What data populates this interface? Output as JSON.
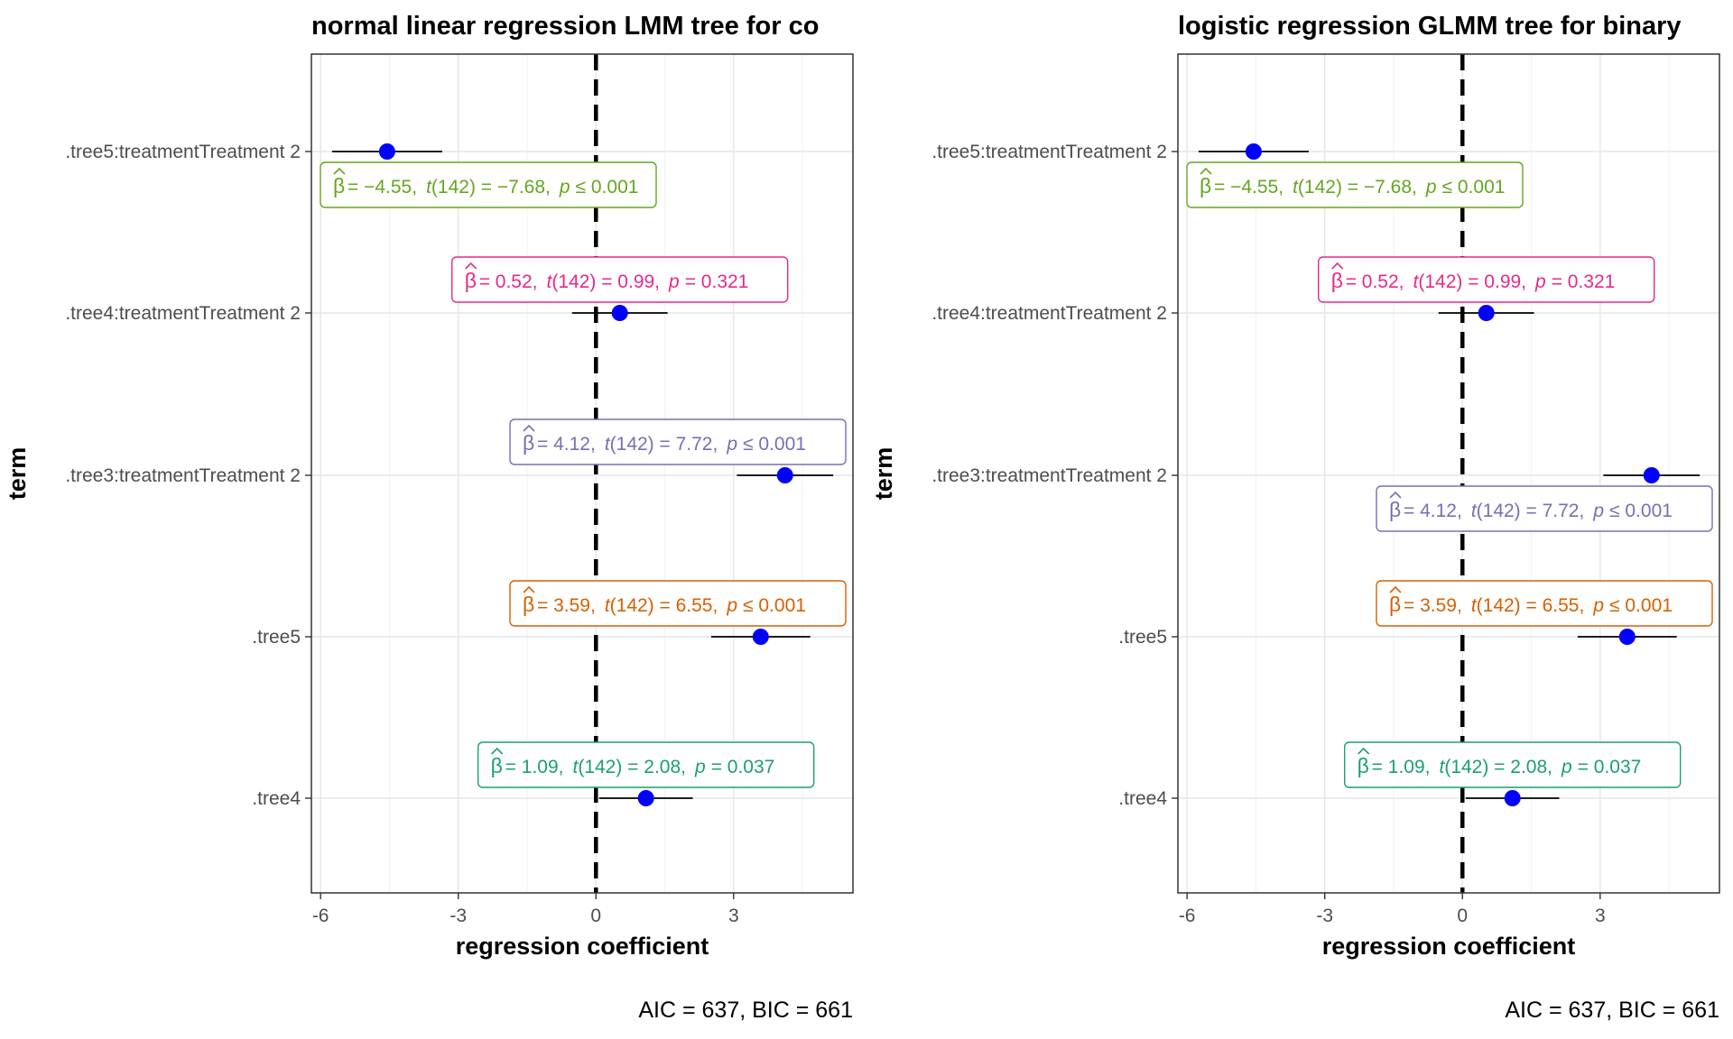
{
  "chart_data": [
    {
      "type": "forest",
      "title": "normal linear regression LMM tree for co",
      "xlabel": "regression coefficient",
      "ylabel": "term",
      "caption": "AIC = 637, BIC = 661",
      "xlim": [
        -6.2,
        5.6
      ],
      "xticks": [
        -6,
        -3,
        0,
        3
      ],
      "xtick_labels": [
        "-6",
        "-3",
        "0",
        "3"
      ],
      "reference_line": 0,
      "grid": true,
      "terms": [
        {
          "term": ".tree5:treatmentTreatment 2",
          "estimate": -4.55,
          "lo": -5.75,
          "hi": -3.35,
          "label_pre": "= −4.55,",
          "label_df": "(142) = −7.68,",
          "label_p": "≤ 0.001",
          "color": "#66a61e",
          "label_pos": "below"
        },
        {
          "term": ".tree4:treatmentTreatment 2",
          "estimate": 0.52,
          "lo": -0.52,
          "hi": 1.56,
          "label_pre": "= 0.52,",
          "label_df": "(142) = 0.99,",
          "label_p": "= 0.321",
          "color": "#e7298a",
          "label_pos": "above"
        },
        {
          "term": ".tree3:treatmentTreatment 2",
          "estimate": 4.12,
          "lo": 3.07,
          "hi": 5.17,
          "label_pre": "= 4.12,",
          "label_df": "(142) = 7.72,",
          "label_p": "≤ 0.001",
          "color": "#7570b3",
          "label_pos": "above"
        },
        {
          "term": ".tree5",
          "estimate": 3.59,
          "lo": 2.51,
          "hi": 4.67,
          "label_pre": "= 3.59,",
          "label_df": "(142) = 6.55,",
          "label_p": "≤ 0.001",
          "color": "#d95f02",
          "label_pos": "above"
        },
        {
          "term": ".tree4",
          "estimate": 1.09,
          "lo": 0.07,
          "hi": 2.11,
          "label_pre": "= 1.09,",
          "label_df": "(142) = 2.08,",
          "label_p": "= 0.037",
          "color": "#1b9e77",
          "label_pos": "above"
        }
      ]
    },
    {
      "type": "forest",
      "title": "logistic regression GLMM tree for binary",
      "xlabel": "regression coefficient",
      "ylabel": "term",
      "caption": "AIC = 637, BIC = 661",
      "xlim": [
        -6.2,
        5.6
      ],
      "xticks": [
        -6,
        -3,
        0,
        3
      ],
      "xtick_labels": [
        "-6",
        "-3",
        "0",
        "3"
      ],
      "reference_line": 0,
      "grid": true,
      "terms": [
        {
          "term": ".tree5:treatmentTreatment 2",
          "estimate": -4.55,
          "lo": -5.75,
          "hi": -3.35,
          "label_pre": "= −4.55,",
          "label_df": "(142) = −7.68,",
          "label_p": "≤ 0.001",
          "color": "#66a61e",
          "label_pos": "below"
        },
        {
          "term": ".tree4:treatmentTreatment 2",
          "estimate": 0.52,
          "lo": -0.52,
          "hi": 1.56,
          "label_pre": "= 0.52,",
          "label_df": "(142) = 0.99,",
          "label_p": "= 0.321",
          "color": "#e7298a",
          "label_pos": "above"
        },
        {
          "term": ".tree3:treatmentTreatment 2",
          "estimate": 4.12,
          "lo": 3.07,
          "hi": 5.17,
          "label_pre": "= 4.12,",
          "label_df": "(142) = 7.72,",
          "label_p": "≤ 0.001",
          "color": "#7570b3",
          "label_pos": "below"
        },
        {
          "term": ".tree5",
          "estimate": 3.59,
          "lo": 2.51,
          "hi": 4.67,
          "label_pre": "= 3.59,",
          "label_df": "(142) = 6.55,",
          "label_p": "≤ 0.001",
          "color": "#d95f02",
          "label_pos": "above"
        },
        {
          "term": ".tree4",
          "estimate": 1.09,
          "lo": 0.07,
          "hi": 2.11,
          "label_pre": "= 1.09,",
          "label_df": "(142) = 2.08,",
          "label_p": "= 0.037",
          "color": "#1b9e77",
          "label_pos": "above"
        }
      ]
    }
  ]
}
